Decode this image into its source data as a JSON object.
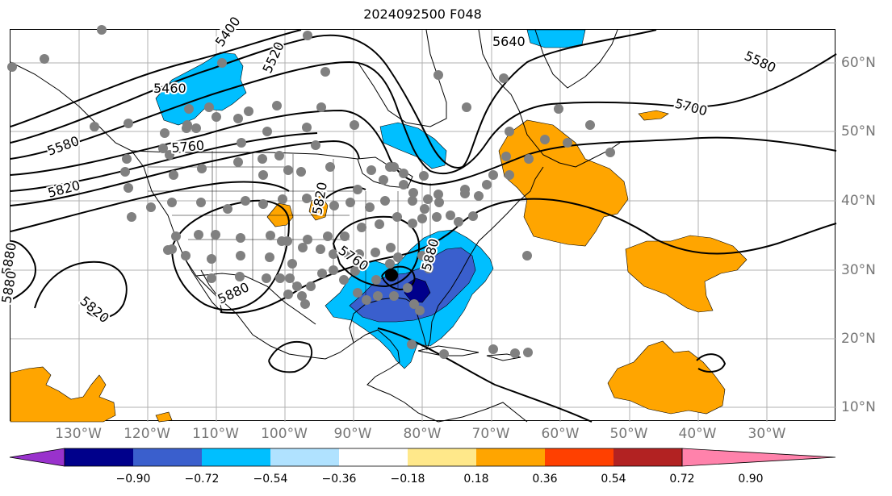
{
  "title": "2024092500 F048",
  "colors": {
    "orange": "#ffa500",
    "light_blue": "#00bfff",
    "mid_blue": "#3a5fcd",
    "dark_blue": "#00008b",
    "contour": "#000000",
    "station": "#808080",
    "grid": "#b0b0b0"
  },
  "longitude_labels": [
    "130°W",
    "120°W",
    "110°W",
    "100°W",
    "90°W",
    "80°W",
    "70°W",
    "60°W",
    "50°W",
    "40°W",
    "30°W"
  ],
  "latitude_labels": [
    "60°N",
    "50°N",
    "40°N",
    "30°N",
    "20°N",
    "10°N"
  ],
  "contour_labels": [
    "5460",
    "5400",
    "5520",
    "5640",
    "5580",
    "5580",
    "5700",
    "5760",
    "5820",
    "5820",
    "5880",
    "5880",
    "5880",
    "5760",
    "5820",
    "5880"
  ],
  "colorbar": {
    "ticks": [
      "−0.90",
      "−0.72",
      "−0.54",
      "−0.36",
      "−0.18",
      "0.18",
      "0.36",
      "0.54",
      "0.72",
      "0.90"
    ],
    "colors": [
      "#9932cc",
      "#00008b",
      "#3a5fcd",
      "#00bfff",
      "#b0e2ff",
      "#ffffff",
      "#ffe88a",
      "#ffa500",
      "#ff4000",
      "#b22222",
      "#ff82ab"
    ]
  }
}
